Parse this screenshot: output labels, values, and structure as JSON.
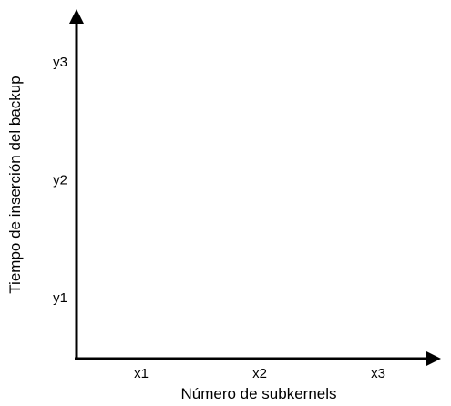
{
  "chart_data": {
    "type": "line",
    "title": "",
    "xlabel": "Número de subkernels",
    "ylabel": "Tiempo de inserción del backup",
    "x_ticks": [
      "x1",
      "x2",
      "x3"
    ],
    "y_ticks": [
      "y1",
      "y2",
      "y3"
    ],
    "series": [],
    "grid": false,
    "legend": "none"
  }
}
